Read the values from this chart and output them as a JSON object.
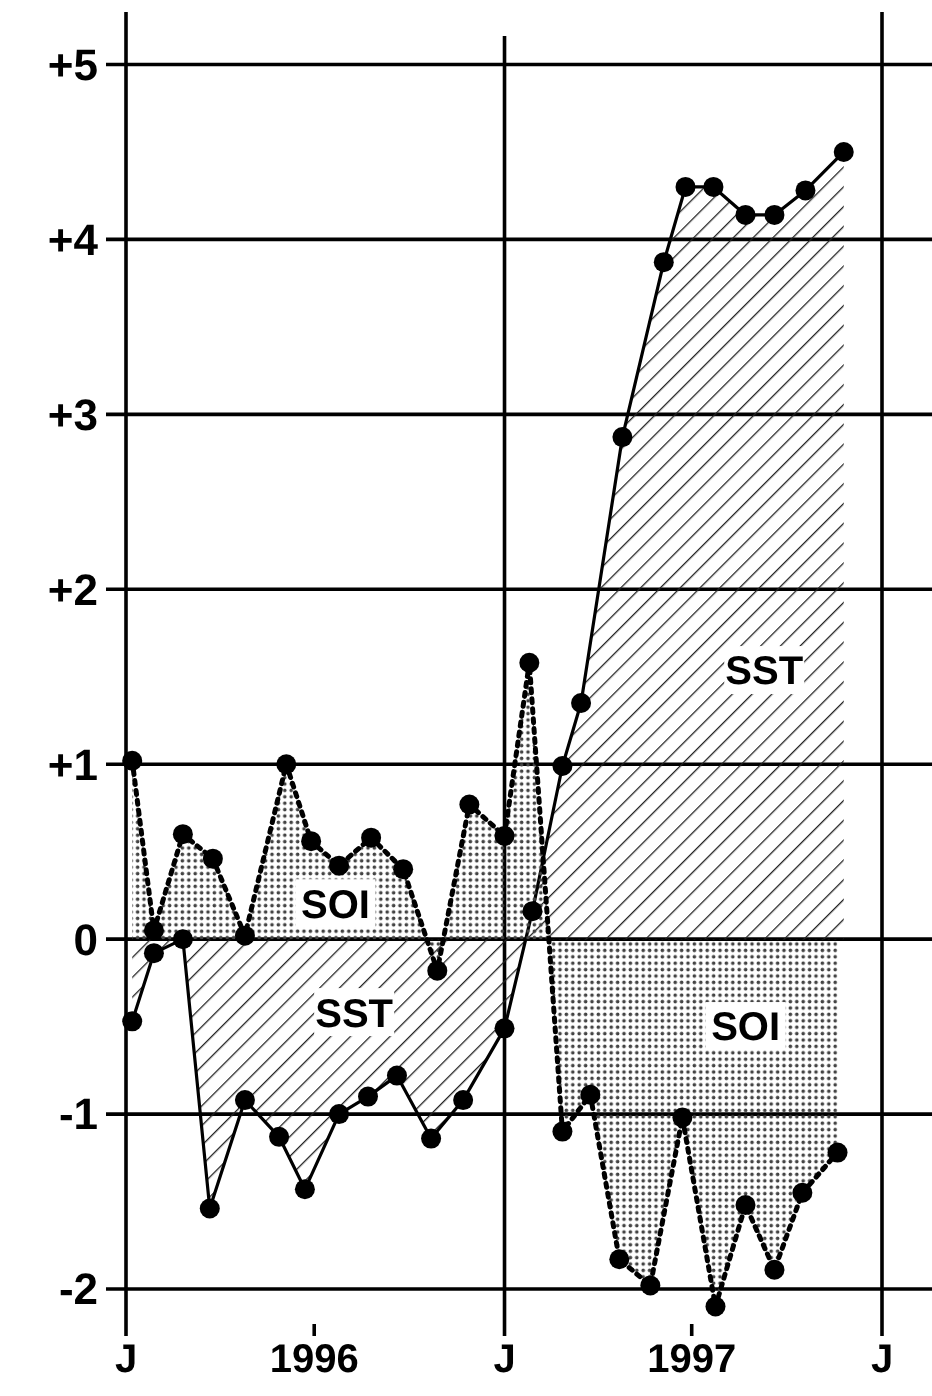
{
  "chart_data": {
    "type": "area",
    "xlim": [
      "1996-01-01",
      "1998-01-01"
    ],
    "ylim": [
      -2.2,
      5.3
    ],
    "xticks": [
      {
        "value": "1996-01-01",
        "label": "J"
      },
      {
        "value": "1996-07-01",
        "label": "1996"
      },
      {
        "value": "1997-01-01",
        "label": "J"
      },
      {
        "value": "1997-07-01",
        "label": "1997"
      },
      {
        "value": "1998-01-01",
        "label": "J"
      }
    ],
    "yticks": [
      {
        "value": -2,
        "label": "-2"
      },
      {
        "value": -1,
        "label": "-1"
      },
      {
        "value": 0,
        "label": "0"
      },
      {
        "value": 1,
        "label": "+1"
      },
      {
        "value": 2,
        "label": "+2"
      },
      {
        "value": 3,
        "label": "+3"
      },
      {
        "value": 4,
        "label": "+4"
      },
      {
        "value": 5,
        "label": "+5"
      }
    ],
    "grid": "y",
    "marker": "circle",
    "ref_lines": [
      {
        "axis": "x",
        "value": "1997-01-01"
      }
    ],
    "series": [
      {
        "color": "#000000",
        "line_style": "solid",
        "x": [
          "1996-01-07",
          "1996-01-28",
          "1996-02-25",
          "1996-03-22",
          "1996-04-25",
          "1996-05-28",
          "1996-06-22",
          "1996-07-25",
          "1996-08-22",
          "1996-09-19",
          "1996-10-22",
          "1996-11-22",
          "1997-01-01",
          "1997-01-28",
          "1997-02-26",
          "1997-03-16",
          "1997-04-25",
          "1997-06-04",
          "1997-06-25",
          "1997-07-22",
          "1997-08-22",
          "1997-09-19",
          "1997-10-19",
          "1997-11-25"
        ],
        "values": [
          -0.47,
          -0.08,
          0.0,
          -1.54,
          -0.92,
          -1.13,
          -1.43,
          -1.0,
          -0.9,
          -0.78,
          -1.14,
          -0.92,
          -0.51,
          0.16,
          0.99,
          1.35,
          2.87,
          3.87,
          4.3,
          4.3,
          4.14,
          4.14,
          4.28,
          4.5
        ]
      },
      {
        "color": "#000000",
        "line_style": "dotted",
        "x": [
          "1996-01-07",
          "1996-01-28",
          "1996-02-25",
          "1996-03-25",
          "1996-04-25",
          "1996-06-04",
          "1996-06-28",
          "1996-07-25",
          "1996-08-25",
          "1996-09-25",
          "1996-10-28",
          "1996-11-28",
          "1997-01-01",
          "1997-01-25",
          "1997-02-26",
          "1997-03-25",
          "1997-04-22",
          "1997-05-22",
          "1997-06-22",
          "1997-07-24",
          "1997-08-22",
          "1997-09-19",
          "1997-10-16",
          "1997-11-19"
        ],
        "values": [
          1.02,
          0.05,
          0.6,
          0.46,
          0.02,
          1.0,
          0.56,
          0.42,
          0.58,
          0.4,
          -0.18,
          0.77,
          0.59,
          1.58,
          -1.1,
          -0.89,
          -1.83,
          -1.98,
          -1.02,
          -2.1,
          -1.52,
          -1.89,
          -1.45,
          -1.22
        ]
      }
    ],
    "annotations": [
      "SOI",
      "SST",
      "SST",
      "SOI"
    ]
  }
}
